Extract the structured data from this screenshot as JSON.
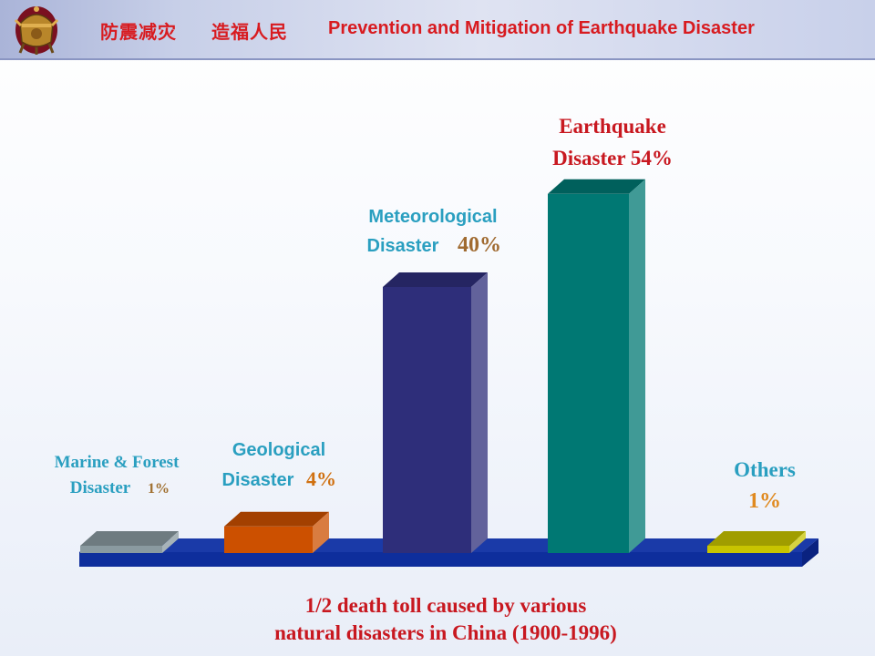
{
  "header": {
    "title_cn_1": "防震减灾",
    "title_cn_2": "造福人民",
    "title_en": "Prevention and Mitigation of  Earthquake Disaster"
  },
  "chart_data": {
    "type": "bar",
    "categories": [
      "Marine & Forest Disaster",
      "Geological Disaster",
      "Meteorological Disaster",
      "Earthquake Disaster",
      "Others"
    ],
    "values": [
      1,
      4,
      40,
      54,
      1
    ],
    "unit": "%",
    "colors": [
      "#8a9aa0",
      "#cc5000",
      "#2e2e7a",
      "#007873",
      "#c8c400"
    ],
    "labels": [
      {
        "line1": "Marine & Forest",
        "line2": "Disaster",
        "pct": "1%"
      },
      {
        "line1": "Geological",
        "line2": "Disaster",
        "pct": "4%"
      },
      {
        "line1": "Meteorological",
        "line2": "Disaster",
        "pct": "40%"
      },
      {
        "line1": "Earthquake",
        "line2": "Disaster 54%",
        "pct": ""
      },
      {
        "line1": "Others",
        "line2": "1%",
        "pct": ""
      }
    ],
    "caption_line1": "1/2 death toll caused by various",
    "caption_line2": "natural disasters in China (1900-1996)",
    "axis_color": "#0e2e9c",
    "grid": false,
    "legend": "none"
  }
}
